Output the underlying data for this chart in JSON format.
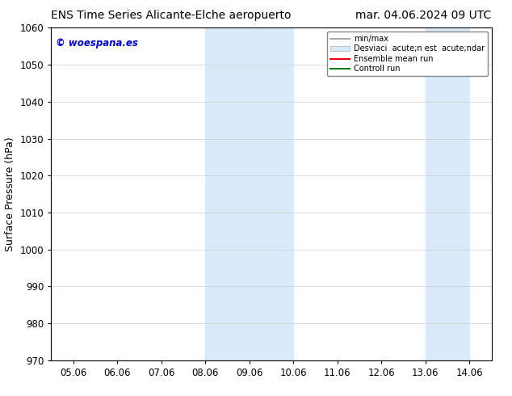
{
  "title_left": "ENS Time Series Alicante-Elche aeropuerto",
  "title_right": "mar. 04.06.2024 09 UTC",
  "ylabel": "Surface Pressure (hPa)",
  "ylim": [
    970,
    1060
  ],
  "yticks": [
    970,
    980,
    990,
    1000,
    1010,
    1020,
    1030,
    1040,
    1050,
    1060
  ],
  "xtick_labels": [
    "05.06",
    "06.06",
    "07.06",
    "08.06",
    "09.06",
    "10.06",
    "11.06",
    "12.06",
    "13.06",
    "14.06"
  ],
  "xtick_positions": [
    0,
    1,
    2,
    3,
    4,
    5,
    6,
    7,
    8,
    9
  ],
  "xlim": [
    -0.5,
    9.5
  ],
  "shaded_regions": [
    {
      "x_start": 3.0,
      "x_end": 5.0,
      "color": "#daeaf8"
    },
    {
      "x_start": 8.0,
      "x_end": 9.0,
      "color": "#daeaf8"
    }
  ],
  "watermark_text": "© woespana.es",
  "watermark_color": "#0000cc",
  "legend_labels": [
    "min/max",
    "Desviaci  acute;n est  acute;ndar",
    "Ensemble mean run",
    "Controll run"
  ],
  "legend_colors": [
    "#aaaaaa",
    "#daeaf8",
    "red",
    "green"
  ],
  "bg_color": "#ffffff",
  "grid_color": "#cccccc",
  "title_fontsize": 10,
  "tick_fontsize": 8.5
}
